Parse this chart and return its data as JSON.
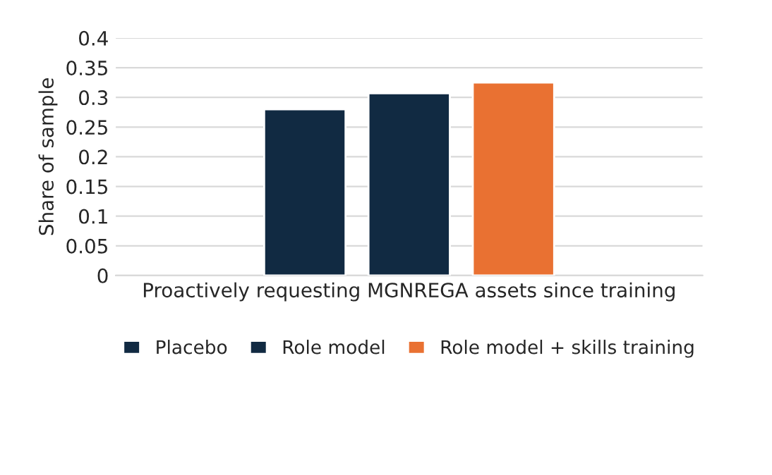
{
  "chart_data": {
    "type": "bar",
    "ylabel": "Share of sample",
    "categories": [
      "Proactively requesting MGNREGA assets since training"
    ],
    "series": [
      {
        "name": "Placebo",
        "color": "#112a42",
        "values": [
          0.28
        ]
      },
      {
        "name": "Role model",
        "color": "#112a42",
        "values": [
          0.307
        ]
      },
      {
        "name": "Role model + skills training",
        "color": "#e97132",
        "values": [
          0.325
        ]
      }
    ],
    "ylim": [
      0,
      0.4
    ],
    "yticks": [
      0,
      0.05,
      0.1,
      0.15,
      0.2,
      0.25,
      0.3,
      0.35,
      0.4
    ],
    "grid": "y",
    "legend": "bottom"
  }
}
